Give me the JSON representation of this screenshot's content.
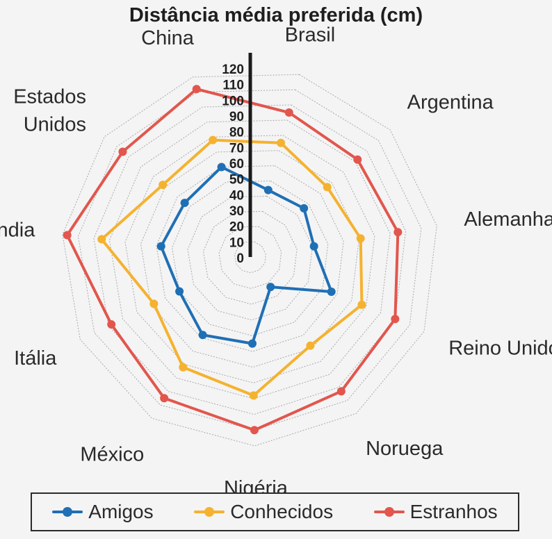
{
  "chart_data": {
    "type": "radar",
    "title": "Distância média preferida (cm)",
    "categories": [
      "Brasil",
      "Argentina",
      "Alemanha",
      "Reino Unido",
      "Noruega",
      "Nigéria",
      "México",
      "Itália",
      "Índia",
      "Estados Unidos",
      "China"
    ],
    "category_labels": [
      [
        "Brasil"
      ],
      [
        "Argentina"
      ],
      [
        "Alemanha"
      ],
      [
        "Reino Unido"
      ],
      [
        "Noruega"
      ],
      [
        "Nigéria"
      ],
      [
        "México"
      ],
      [
        "Itália"
      ],
      [
        "Índia"
      ],
      [
        "Estados",
        "Unidos"
      ],
      [
        "China"
      ]
    ],
    "radial_ticks": [
      0,
      10,
      20,
      30,
      40,
      50,
      60,
      70,
      80,
      90,
      100,
      110,
      120
    ],
    "rlim": [
      0,
      120
    ],
    "grid": true,
    "legend_position": "bottom",
    "series": [
      {
        "name": "Amigos",
        "color": "#1f6fb5",
        "values": [
          44,
          46,
          41,
          56,
          23,
          55,
          58,
          50,
          57,
          54,
          60
        ]
      },
      {
        "name": "Conhecidos",
        "color": "#f5b22f",
        "values": [
          75,
          66,
          71,
          77,
          68,
          88,
          82,
          68,
          95,
          72,
          78
        ]
      },
      {
        "name": "Estranhos",
        "color": "#e2564d",
        "values": [
          95,
          92,
          95,
          100,
          103,
          110,
          105,
          98,
          117,
          105,
          112
        ]
      }
    ]
  }
}
